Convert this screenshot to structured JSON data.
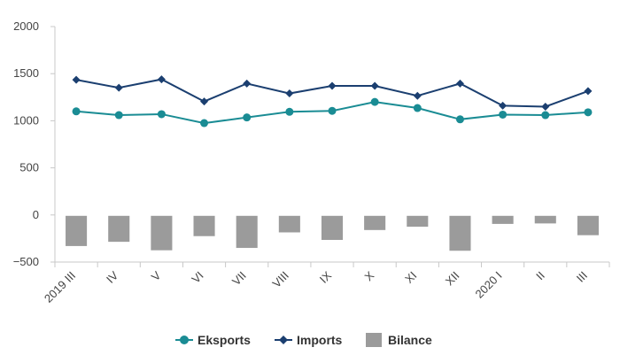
{
  "chart_data": {
    "type": "bar",
    "categories": [
      "2019 III",
      "IV",
      "V",
      "VI",
      "VII",
      "VIII",
      "IX",
      "X",
      "XI",
      "XII",
      "2020 I",
      "II",
      "III"
    ],
    "series": [
      {
        "name": "Eksports",
        "type": "line",
        "color": "#1a8c94",
        "marker": "circle",
        "values": [
          1100,
          1060,
          1070,
          975,
          1035,
          1095,
          1105,
          1200,
          1135,
          1015,
          1065,
          1060,
          1090
        ]
      },
      {
        "name": "Imports",
        "type": "line",
        "color": "#1b3f70",
        "marker": "diamond",
        "values": [
          1435,
          1350,
          1440,
          1205,
          1395,
          1290,
          1370,
          1370,
          1265,
          1395,
          1160,
          1150,
          1315
        ]
      },
      {
        "name": "Bilance",
        "type": "bar",
        "color": "#9b9b9b",
        "values": [
          -330,
          -285,
          -375,
          -225,
          -350,
          -185,
          -265,
          -160,
          -125,
          -380,
          -95,
          -90,
          -215
        ]
      }
    ],
    "ylim": [
      -500,
      2000
    ],
    "yticks": [
      2000,
      1500,
      1000,
      500,
      0,
      -500
    ],
    "ytick_labels": [
      "2000",
      "1500",
      "1000",
      "500",
      "0",
      "−500"
    ],
    "grid": false,
    "legend": "bottom",
    "title": "",
    "xlabel": "",
    "ylabel": ""
  }
}
